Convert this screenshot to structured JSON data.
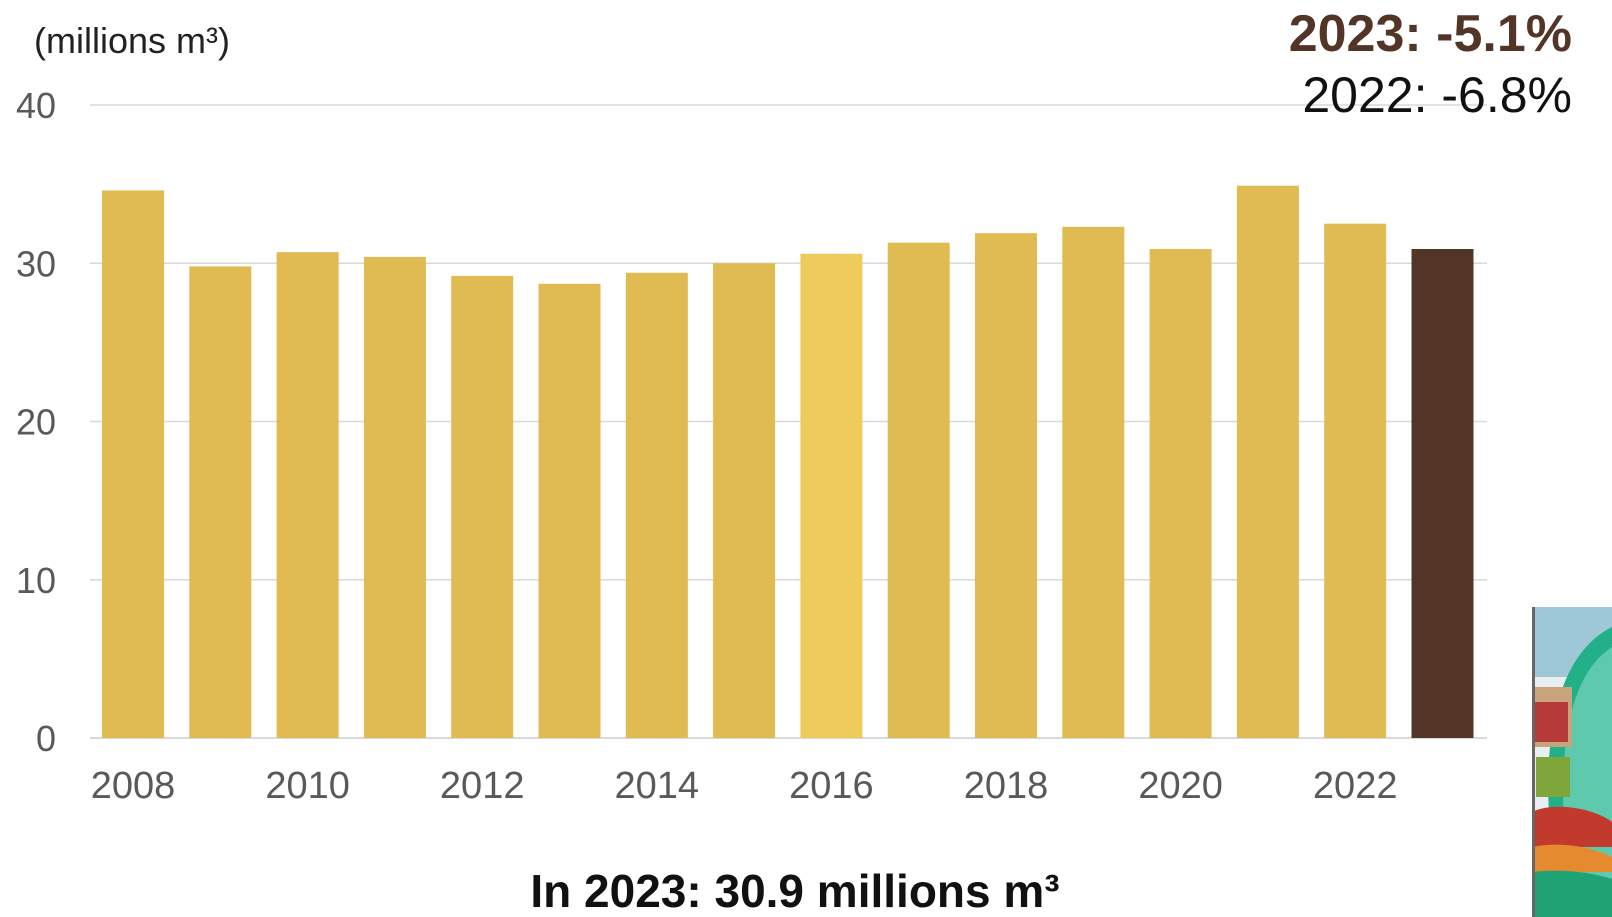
{
  "unit_label": "(millions m³)",
  "delta_current": "2023: -5.1%",
  "delta_previous": "2022: -6.8%",
  "footer_note": "In 2023: 30.9 millions m³",
  "colors": {
    "bar": "#E0BB52",
    "bar_highlight": "#EFCB5E",
    "bar_latest": "#533528",
    "grid": "#D9D9D9",
    "tick_text": "#595959",
    "delta_current": "#533528"
  },
  "chart_data": {
    "type": "bar",
    "categories": [
      2008,
      2009,
      2010,
      2011,
      2012,
      2013,
      2014,
      2015,
      2016,
      2017,
      2018,
      2019,
      2020,
      2021,
      2022,
      2023
    ],
    "values": [
      34.6,
      29.8,
      30.7,
      30.4,
      29.2,
      28.7,
      29.4,
      30.0,
      30.6,
      31.3,
      31.9,
      32.3,
      30.9,
      34.9,
      32.5,
      30.9
    ],
    "x_tick_labels": [
      "2008",
      "2010",
      "2012",
      "2014",
      "2016",
      "2018",
      "2020",
      "2022"
    ],
    "y_ticks": [
      0,
      10,
      20,
      30,
      40
    ],
    "ylim": [
      0,
      40
    ],
    "grid": true,
    "title": "",
    "xlabel": "",
    "ylabel": "(millions m³)"
  }
}
